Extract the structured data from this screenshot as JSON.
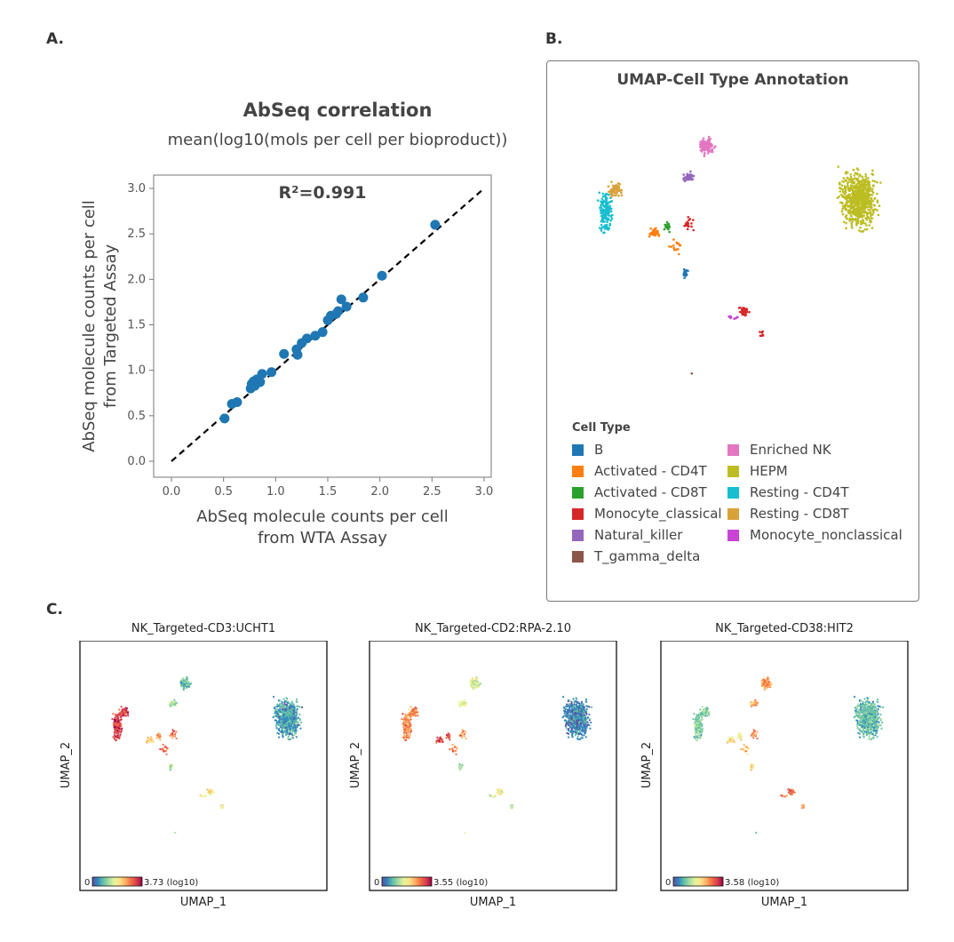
{
  "panels": {
    "a": "A.",
    "b": "B.",
    "c": "C."
  },
  "chart_data": [
    {
      "type": "scatter",
      "title": "AbSeq correlation",
      "subtitle": "mean(log10(mols per cell per bioproduct))",
      "annotation": "R²=0.991",
      "xlabel": [
        "AbSeq molecule counts per cell",
        "from WTA Assay"
      ],
      "ylabel": [
        "AbSeq molecule counts per cell",
        "from Targeted Assay"
      ],
      "xlim": [
        0,
        3.0
      ],
      "ylim": [
        0,
        3.0
      ],
      "xticks": [
        "0.0",
        "0.5",
        "1.0",
        "1.5",
        "2.0",
        "2.5",
        "3.0"
      ],
      "yticks": [
        "0.0",
        "0.5",
        "1.0",
        "1.5",
        "2.0",
        "2.5",
        "3.0"
      ],
      "point_color": "#1f77b4",
      "reference_line": {
        "style": "dashed",
        "from": [
          0,
          0
        ],
        "to": [
          3,
          3
        ],
        "color": "#000000"
      },
      "points": [
        [
          0.51,
          0.47
        ],
        [
          0.58,
          0.63
        ],
        [
          0.63,
          0.65
        ],
        [
          0.76,
          0.8
        ],
        [
          0.77,
          0.85
        ],
        [
          0.79,
          0.88
        ],
        [
          0.8,
          0.83
        ],
        [
          0.82,
          0.9
        ],
        [
          0.85,
          0.87
        ],
        [
          0.87,
          0.96
        ],
        [
          0.96,
          0.98
        ],
        [
          1.08,
          1.18
        ],
        [
          1.2,
          1.23
        ],
        [
          1.21,
          1.17
        ],
        [
          1.25,
          1.3
        ],
        [
          1.3,
          1.35
        ],
        [
          1.38,
          1.38
        ],
        [
          1.45,
          1.42
        ],
        [
          1.5,
          1.55
        ],
        [
          1.53,
          1.6
        ],
        [
          1.58,
          1.62
        ],
        [
          1.6,
          1.65
        ],
        [
          1.63,
          1.78
        ],
        [
          1.68,
          1.7
        ],
        [
          1.84,
          1.8
        ],
        [
          2.02,
          2.04
        ],
        [
          2.53,
          2.6
        ]
      ],
      "grid": false
    },
    {
      "type": "scatter",
      "title": "UMAP-Cell Type Annotation",
      "legend_title": "Cell Type",
      "legend_placement": "bottom-left",
      "legend": [
        {
          "name": "B",
          "color": "#1f77b4"
        },
        {
          "name": "Activated - CD4T",
          "color": "#ff7f0e"
        },
        {
          "name": "Activated - CD8T",
          "color": "#2ca02c"
        },
        {
          "name": "Monocyte_classical",
          "color": "#d62728"
        },
        {
          "name": "Natural_killer",
          "color": "#9467bd"
        },
        {
          "name": "T_gamma_delta",
          "color": "#8c564b"
        },
        {
          "name": "Enriched NK",
          "color": "#e377c2"
        },
        {
          "name": "HEPM",
          "color": "#bcbd22"
        },
        {
          "name": "Resting - CD4T",
          "color": "#17becf"
        },
        {
          "name": "Resting - CD8T",
          "color": "#d9a13a"
        },
        {
          "name": "Monocyte_nonclassical",
          "color": "#c844d4"
        }
      ]
    },
    {
      "type": "scatter",
      "title": "NK_Targeted-CD3:UCHT1",
      "xlabel": "UMAP_1",
      "ylabel": "UMAP_2",
      "colorbar_min": "0",
      "colorbar_max": "3.73 (log10)",
      "colormap": "Spectral_r"
    },
    {
      "type": "scatter",
      "title": "NK_Targeted-CD2:RPA-2.10",
      "xlabel": "UMAP_1",
      "ylabel": "UMAP_2",
      "colorbar_min": "0",
      "colorbar_max": "3.55 (log10)",
      "colormap": "Spectral_r"
    },
    {
      "type": "scatter",
      "title": "NK_Targeted-CD38:HIT2",
      "xlabel": "UMAP_1",
      "ylabel": "UMAP_2",
      "colorbar_min": "0",
      "colorbar_max": "3.58 (log10)",
      "colormap": "Spectral_r"
    }
  ]
}
